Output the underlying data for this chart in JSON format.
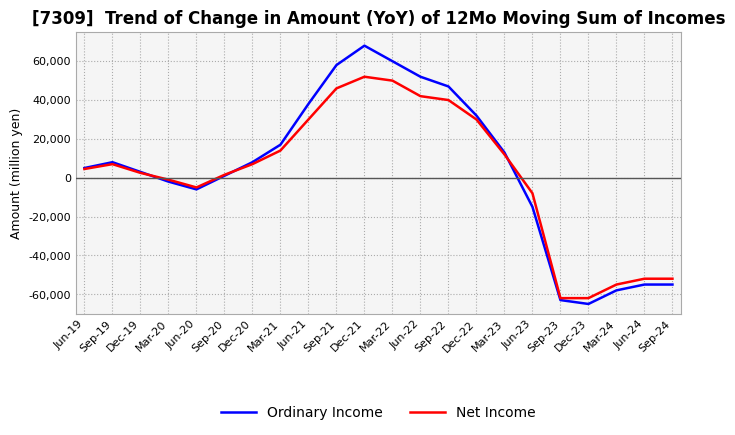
{
  "title": "[7309]  Trend of Change in Amount (YoY) of 12Mo Moving Sum of Incomes",
  "ylabel": "Amount (million yen)",
  "ylim": [
    -70000,
    75000
  ],
  "yticks": [
    -60000,
    -40000,
    -20000,
    0,
    20000,
    40000,
    60000
  ],
  "dates": [
    "Jun-19",
    "Sep-19",
    "Dec-19",
    "Mar-20",
    "Jun-20",
    "Sep-20",
    "Dec-20",
    "Mar-21",
    "Jun-21",
    "Sep-21",
    "Dec-21",
    "Mar-22",
    "Jun-22",
    "Sep-22",
    "Dec-22",
    "Mar-23",
    "Jun-23",
    "Sep-23",
    "Dec-23",
    "Mar-24",
    "Jun-24",
    "Sep-24"
  ],
  "ordinary_income": [
    5000,
    8000,
    3000,
    -2000,
    -6000,
    1000,
    8000,
    17000,
    38000,
    58000,
    68000,
    60000,
    52000,
    47000,
    32000,
    13000,
    -15000,
    -63000,
    -65000,
    -58000,
    -55000,
    -55000
  ],
  "net_income": [
    4500,
    7000,
    2500,
    -1000,
    -5000,
    1500,
    7000,
    14000,
    30000,
    46000,
    52000,
    50000,
    42000,
    40000,
    30000,
    12000,
    -8000,
    -62000,
    -62000,
    -55000,
    -52000,
    -52000
  ],
  "ordinary_color": "#0000ff",
  "net_color": "#ff0000",
  "background_color": "#ffffff",
  "grid_color": "#999999",
  "title_fontsize": 12,
  "axis_fontsize": 9,
  "tick_fontsize": 8,
  "legend_fontsize": 10
}
